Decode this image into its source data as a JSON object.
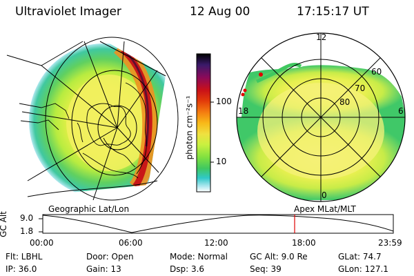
{
  "header": {
    "title": "Ultraviolet Imager",
    "date": "12 Aug 00",
    "time": "17:15:17 UT"
  },
  "colorbar": {
    "unit_label": "photon cm⁻²s⁻¹",
    "ticks": [
      "100",
      "10"
    ],
    "colors": [
      "#000000",
      "#3a1a6a",
      "#8a0a5a",
      "#c8101a",
      "#e23a0a",
      "#f47a10",
      "#f8b818",
      "#f0e040",
      "#c8f040",
      "#80e040",
      "#40c860",
      "#30c8c8",
      "#b0e8f0",
      "#ffffff"
    ]
  },
  "left_panel": {
    "label": "Geographic Lat/Lon"
  },
  "right_panel": {
    "label": "Apex  MLat/MLT",
    "mlt_labels": [
      "12",
      "18",
      "6",
      "0"
    ],
    "mlat_labels": [
      "60",
      "70",
      "80"
    ]
  },
  "altitude_plot": {
    "ylabel": "GC Alt",
    "y_ticks": [
      "9.0",
      "1.8"
    ],
    "x_ticks": [
      "00:00",
      "06:00",
      "12:00",
      "18:00",
      "23:59"
    ],
    "marker_color": "#e00000"
  },
  "info": {
    "flt": "Flt: LBHL",
    "door": "Door: Open",
    "mode": "Mode:  Normal",
    "gc_alt": "GC Alt: 9.0 Re",
    "glat": "GLat:   74.7",
    "ip": "IP: 36.0",
    "gain": "Gain: 13",
    "dsp": "Dsp:      3.6",
    "seq": "Seq: 39",
    "glon": "GLon: 127.1"
  }
}
